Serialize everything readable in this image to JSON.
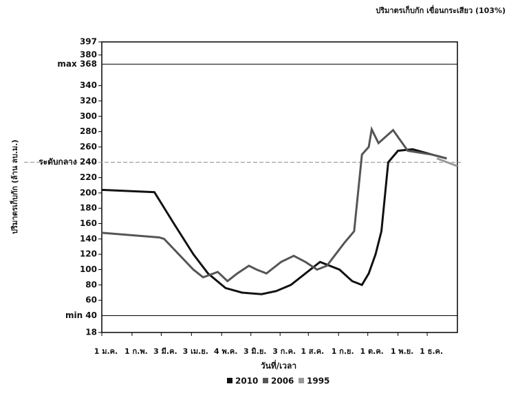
{
  "chart_data": {
    "type": "line",
    "title": "ปริมาตรเก็บกัก เขื่อนกระเสียว (103%)",
    "y_label": "ปริมาตรเก็บกัก (ล้าน ลบ.ม.)",
    "x_label": "วันที่/เวลา",
    "xlim": [
      1,
      366
    ],
    "xticks": [
      {
        "value": 1,
        "label": "1 ม.ค."
      },
      {
        "value": 32,
        "label": "1 ก.พ."
      },
      {
        "value": 62,
        "label": "3 มี.ค."
      },
      {
        "value": 93,
        "label": "3 เม.ย."
      },
      {
        "value": 124,
        "label": "4 พ.ค."
      },
      {
        "value": 154,
        "label": "3 มิ.ย."
      },
      {
        "value": 184,
        "label": "3 ก.ค."
      },
      {
        "value": 213,
        "label": "1 ส.ค."
      },
      {
        "value": 244,
        "label": "1 ก.ย."
      },
      {
        "value": 274,
        "label": "1 ต.ค."
      },
      {
        "value": 305,
        "label": "1 พ.ย."
      },
      {
        "value": 335,
        "label": "1 ธ.ค."
      }
    ],
    "ylim": [
      18,
      397
    ],
    "yticks": [
      18,
      60,
      80,
      100,
      120,
      140,
      160,
      180,
      200,
      220,
      260,
      280,
      300,
      320,
      340,
      380,
      397
    ],
    "reference_lines": [
      {
        "value": 368,
        "label": "max 368",
        "color": "#000000"
      },
      {
        "value": 240,
        "label": "ระดับกลาง 240",
        "color": "#888888"
      },
      {
        "value": 40,
        "label": "min 40",
        "color": "#000000"
      }
    ],
    "series": [
      {
        "name": "2010",
        "color": "#111111",
        "x": [
          1,
          55,
          75,
          95,
          110,
          128,
          145,
          165,
          180,
          195,
          210,
          225,
          245,
          258,
          268,
          275,
          282,
          288,
          295,
          305,
          320,
          340,
          355
        ],
        "values": [
          204,
          201,
          160,
          120,
          95,
          76,
          70,
          68,
          72,
          80,
          95,
          110,
          100,
          85,
          80,
          95,
          120,
          150,
          240,
          255,
          257,
          250,
          245
        ]
      },
      {
        "name": "2006",
        "color": "#555555",
        "x": [
          1,
          60,
          65,
          80,
          95,
          105,
          120,
          130,
          140,
          152,
          160,
          170,
          185,
          198,
          210,
          222,
          232,
          250,
          260,
          268,
          275,
          278,
          285,
          300,
          315,
          340,
          355
        ],
        "values": [
          148,
          142,
          140,
          120,
          100,
          90,
          97,
          85,
          95,
          105,
          100,
          95,
          110,
          118,
          110,
          100,
          105,
          135,
          150,
          250,
          260,
          283,
          265,
          282,
          255,
          250,
          245
        ]
      },
      {
        "name": "1995",
        "color": "#999999",
        "x": [
          345,
          366
        ],
        "values": [
          245,
          235
        ]
      }
    ]
  }
}
